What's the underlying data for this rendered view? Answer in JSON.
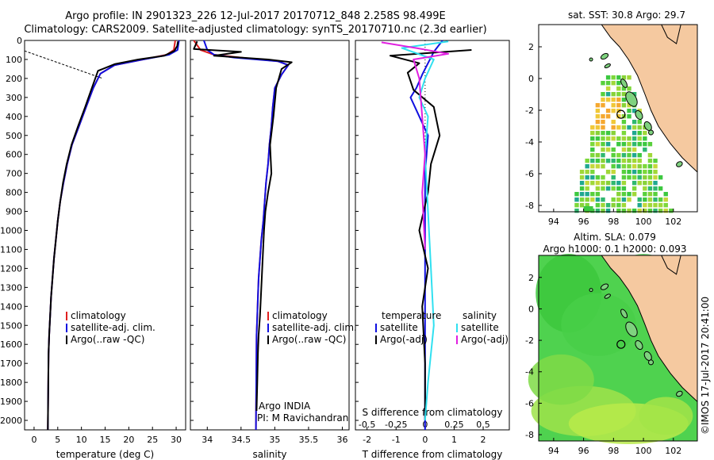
{
  "header": {
    "line1": "Argo profile: IN 2901323_226 12-Jul-2017 20170712_848 2.258S 98.499E",
    "line2": "Climatology: CARS2009. Satellite-adjusted climatology: synTS_20170710.nc (2.3d earlier)"
  },
  "colors": {
    "climatology": "#e02020",
    "satellite": "#1010e0",
    "argo": "#000000",
    "sat_salinity": "#30e0f0",
    "argo_salinity": "#e020e0",
    "land": "#f5c9a0",
    "coast": "#000000"
  },
  "chart_data": [
    {
      "type": "line",
      "id": "temperature-panel",
      "xlabel": "temperature (deg C)",
      "xlim": [
        -2,
        32
      ],
      "ylim": [
        2050,
        0
      ],
      "xticks": [
        0,
        5,
        10,
        15,
        20,
        25,
        30
      ],
      "yticks": [
        0,
        100,
        200,
        300,
        400,
        500,
        600,
        700,
        800,
        900,
        1000,
        1100,
        1200,
        1300,
        1400,
        1500,
        1600,
        1700,
        1800,
        1900,
        2000
      ],
      "legend": [
        "climatology",
        "satellite-adj. clim.",
        "Argo(..raw -QC)"
      ],
      "series": [
        {
          "name": "climatology",
          "x": [
            29.8,
            29.5,
            28,
            23,
            17,
            14,
            12.5,
            11,
            9.5,
            8,
            7,
            6.2,
            5.5,
            5,
            4.6,
            4.2,
            3.9,
            3.6,
            3.4,
            3.2,
            3.05,
            2.9
          ],
          "y": [
            0,
            50,
            75,
            100,
            130,
            175,
            250,
            350,
            450,
            550,
            650,
            750,
            850,
            950,
            1050,
            1150,
            1250,
            1350,
            1450,
            1550,
            1650,
            2050
          ]
        },
        {
          "name": "satellite-adj. clim.",
          "x": [
            30.6,
            30.3,
            28.5,
            23,
            17,
            14,
            12.5,
            11,
            9.5,
            8,
            7,
            6.2,
            5.5,
            5,
            4.6,
            4.2,
            3.9,
            3.6,
            3.4,
            3.2,
            3.05,
            2.9
          ],
          "y": [
            0,
            50,
            75,
            100,
            130,
            175,
            250,
            350,
            450,
            550,
            650,
            750,
            850,
            950,
            1050,
            1150,
            1250,
            1350,
            1450,
            1550,
            1650,
            2050
          ]
        },
        {
          "name": "Argo(..raw -QC)",
          "x": [
            30.4,
            30.2,
            29.6,
            27.5,
            22,
            17,
            13.5,
            12.2,
            10.8,
            9.3,
            7.9,
            6.9,
            6.1,
            5.5,
            5,
            4.6,
            4.2,
            3.9,
            3.6,
            3.4,
            3.2,
            3.05,
            2.9
          ],
          "y": [
            5,
            30,
            55,
            80,
            100,
            125,
            160,
            250,
            350,
            450,
            550,
            650,
            750,
            850,
            950,
            1050,
            1150,
            1250,
            1350,
            1450,
            1550,
            1650,
            2050
          ]
        },
        {
          "name": "spike",
          "x": [
            -2,
            14.5
          ],
          "y": [
            55,
            200
          ]
        }
      ]
    },
    {
      "type": "line",
      "id": "salinity-panel",
      "xlabel": "salinity",
      "xlim": [
        33.75,
        36.1
      ],
      "ylim": [
        2050,
        0
      ],
      "xticks": [
        34,
        34.5,
        35,
        35.5,
        36
      ],
      "legend": [
        "climatology",
        "satellite-adj. clim.",
        "Argo(..raw -QC)"
      ],
      "annotation": [
        "Argo INDIA",
        "PI: M Ravichandran"
      ],
      "series": [
        {
          "name": "climatology",
          "x": [
            33.8,
            33.9,
            34.1,
            34.5,
            35.05,
            35.2,
            35.1,
            35.0,
            34.97,
            34.95,
            34.92,
            34.9,
            34.87,
            34.85,
            34.83,
            34.8,
            34.78,
            34.76,
            34.75,
            34.74,
            34.73,
            34.72
          ],
          "y": [
            0,
            50,
            75,
            90,
            110,
            130,
            180,
            250,
            350,
            450,
            550,
            650,
            750,
            850,
            950,
            1050,
            1150,
            1250,
            1350,
            1450,
            1550,
            2050
          ]
        },
        {
          "name": "satellite-adj. clim.",
          "x": [
            33.95,
            34.0,
            34.1,
            34.4,
            35.05,
            35.2,
            35.1,
            35.0,
            34.97,
            34.95,
            34.92,
            34.9,
            34.87,
            34.85,
            34.83,
            34.8,
            34.78,
            34.76,
            34.75,
            34.74,
            34.73,
            34.72
          ],
          "y": [
            0,
            50,
            75,
            90,
            110,
            130,
            180,
            250,
            350,
            450,
            550,
            650,
            750,
            850,
            950,
            1050,
            1150,
            1250,
            1350,
            1450,
            1550,
            2050
          ]
        },
        {
          "name": "Argo(..raw -QC)",
          "x": [
            33.85,
            33.8,
            34.5,
            34.1,
            34.9,
            35.25,
            35.1,
            35.02,
            34.98,
            34.93,
            34.95,
            34.9,
            34.86,
            34.84,
            34.82,
            34.8,
            34.78,
            34.76,
            34.75,
            34.74,
            34.73
          ],
          "y": [
            5,
            45,
            60,
            80,
            100,
            115,
            150,
            250,
            400,
            550,
            700,
            800,
            900,
            1000,
            1150,
            1300,
            1450,
            1550,
            1650,
            1800,
            1950
          ]
        }
      ]
    },
    {
      "type": "line",
      "id": "difference-panel",
      "xlabel": "T difference from climatology",
      "xlabel_top": "S difference from climatology",
      "xlim": [
        -2.4,
        2.9
      ],
      "ylim": [
        2050,
        0
      ],
      "xticks": [
        -2,
        -1,
        0,
        1,
        2
      ],
      "xticklabels_top": [
        "-0.5",
        "-0.25",
        "0",
        "0.25",
        "0.5"
      ],
      "legend": [
        "temperature",
        "satellite",
        "Argo(-adj)",
        "salinity",
        "satellite",
        "Argo(-adj)"
      ],
      "series": [
        {
          "name": "T satellite",
          "x": [
            0.6,
            0.3,
            0.1,
            -0.1,
            -0.3,
            -0.5,
            -0.2,
            0.1,
            0.05,
            0,
            0,
            0,
            0,
            0
          ],
          "y": [
            0,
            60,
            120,
            180,
            250,
            300,
            400,
            500,
            600,
            700,
            900,
            1200,
            1600,
            2050
          ]
        },
        {
          "name": "T Argo(-adj)",
          "x": [
            1.6,
            -1.2,
            -0.2,
            -0.6,
            -0.4,
            0.3,
            0.5,
            0.2,
            0.1,
            -0.2,
            0.1,
            -0.1,
            0,
            0
          ],
          "y": [
            50,
            80,
            120,
            170,
            260,
            350,
            500,
            650,
            800,
            1000,
            1200,
            1400,
            1700,
            2000
          ]
        },
        {
          "name": "S satellite",
          "x": [
            0.8,
            -0.8,
            0.3,
            0.0,
            -0.2,
            0.1,
            0.0,
            0.1,
            0.2,
            0.3,
            0.1,
            0.0
          ],
          "y": [
            5,
            40,
            100,
            200,
            300,
            400,
            600,
            900,
            1200,
            1500,
            1800,
            2000
          ]
        },
        {
          "name": "S Argo(-adj)",
          "x": [
            -1.5,
            -0.3,
            0.8,
            -0.4,
            -0.2,
            0.0,
            -0.1,
            0.0
          ],
          "y": [
            10,
            40,
            70,
            100,
            200,
            600,
            800,
            1100
          ]
        }
      ]
    }
  ],
  "map_sst": {
    "title": "sat. SST: 30.8  Argo: 29.7",
    "xticks": [
      "94",
      "96",
      "98",
      "100",
      "102"
    ],
    "yticks": [
      "2",
      "0",
      "-2",
      "-4",
      "-6",
      "-8"
    ]
  },
  "map_sla": {
    "title_line1": "Altim. SLA: 0.079",
    "title_line2": "Argo h1000: 0.1 h2000: 0.093",
    "xticks": [
      "94",
      "96",
      "98",
      "100",
      "102"
    ],
    "yticks": [
      "2",
      "0",
      "-2",
      "-4",
      "-6",
      "-8"
    ]
  },
  "credit": "©IMOS 17-Jul-2017 20:41:00"
}
